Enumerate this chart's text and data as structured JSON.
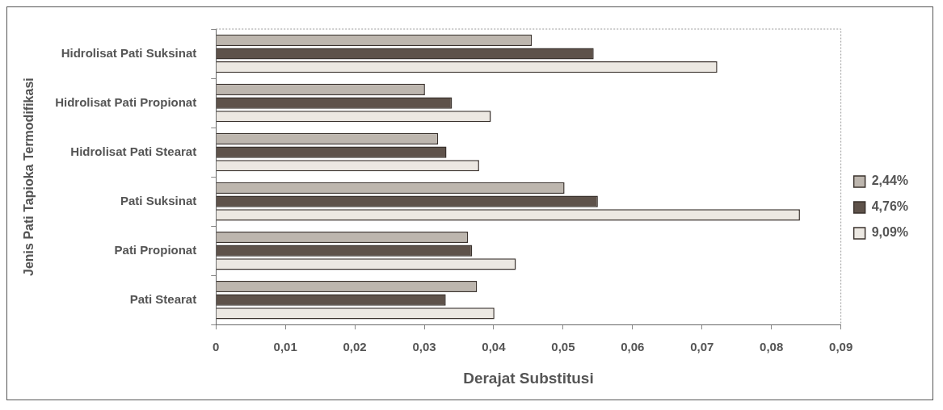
{
  "chart_data": {
    "type": "bar",
    "orientation": "horizontal",
    "xlabel": "Derajat Substitusi",
    "ylabel": "Jenis Pati Tapioka Termodifikasi",
    "categories": [
      "Hidrolisat Pati Suksinat",
      "Hidrolisat Pati Propionat",
      "Hidrolisat Pati Stearat",
      "Pati Suksinat",
      "Pati Propionat",
      "Pati Stearat"
    ],
    "series": [
      {
        "name": "2,44%",
        "color": "#bdb6ae",
        "values": [
          0.0455,
          0.0301,
          0.032,
          0.0502,
          0.0363,
          0.0376
        ]
      },
      {
        "name": "4,76%",
        "color": "#5e524a",
        "values": [
          0.0544,
          0.034,
          0.0332,
          0.055,
          0.0369,
          0.0331
        ]
      },
      {
        "name": "9,09%",
        "color": "#ece8e2",
        "values": [
          0.0722,
          0.0396,
          0.0379,
          0.0841,
          0.0432,
          0.0401
        ]
      }
    ],
    "xlim": [
      0,
      0.09
    ],
    "xticks": [
      0,
      {
        "value": 0.01,
        "label": "0,01"
      },
      {
        "value": 0.02,
        "label": "0,02"
      },
      {
        "value": 0.03,
        "label": "0,03"
      },
      {
        "value": 0.04,
        "label": "0,04"
      },
      {
        "value": 0.05,
        "label": "0,05"
      },
      {
        "value": 0.06,
        "label": "0,06"
      },
      {
        "value": 0.07,
        "label": "0,07"
      },
      {
        "value": 0.08,
        "label": "0,08"
      },
      {
        "value": 0.09,
        "label": "0,09"
      }
    ],
    "grid": false,
    "legend": "right"
  }
}
